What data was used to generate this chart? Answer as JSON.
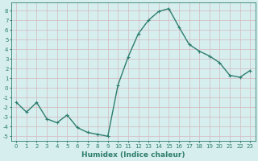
{
  "x": [
    0,
    1,
    2,
    3,
    4,
    5,
    6,
    7,
    8,
    9,
    10,
    11,
    12,
    13,
    14,
    15,
    16,
    17,
    18,
    19,
    20,
    21,
    22,
    23
  ],
  "y": [
    -1.5,
    -2.5,
    -1.5,
    -3.2,
    -3.6,
    -2.8,
    -4.1,
    -4.6,
    -4.8,
    -5.0,
    0.3,
    3.2,
    5.6,
    7.0,
    7.9,
    8.2,
    6.3,
    4.5,
    3.8,
    3.3,
    2.6,
    1.3,
    1.1,
    1.8
  ],
  "line_color": "#2e7d6e",
  "marker": "+",
  "bg_color": "#d6eeee",
  "grid_major_color": "#c8dcdc",
  "grid_minor_color": "#dce8e8",
  "xlabel": "Humidex (Indice chaleur)",
  "xlim": [
    -0.5,
    23.5
  ],
  "ylim": [
    -5.5,
    8.8
  ],
  "xticks": [
    0,
    1,
    2,
    3,
    4,
    5,
    6,
    7,
    8,
    9,
    10,
    11,
    12,
    13,
    14,
    15,
    16,
    17,
    18,
    19,
    20,
    21,
    22,
    23
  ],
  "yticks": [
    -5,
    -4,
    -3,
    -2,
    -1,
    0,
    1,
    2,
    3,
    4,
    5,
    6,
    7,
    8
  ],
  "font_color": "#2e7d6e",
  "tick_fontsize": 5.0,
  "xlabel_fontsize": 6.5,
  "linewidth": 1.0,
  "markersize": 3.5,
  "markeredgewidth": 0.8
}
